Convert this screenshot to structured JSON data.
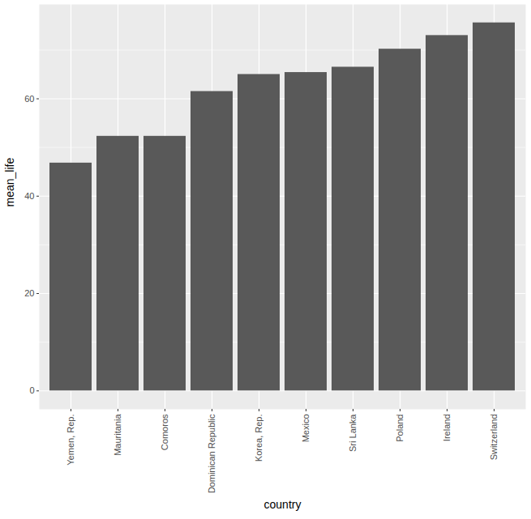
{
  "chart_data": {
    "type": "bar",
    "x_label": "country",
    "y_label": "mean_life",
    "categories": [
      "Yemen, Rep.",
      "Mauritania",
      "Comoros",
      "Dominican Republic",
      "Korea, Rep.",
      "Mexico",
      "Sri Lanka",
      "Poland",
      "Ireland",
      "Switzerland"
    ],
    "values": [
      46.8,
      52.3,
      52.3,
      61.5,
      65.0,
      65.4,
      66.5,
      70.2,
      73.0,
      75.6
    ],
    "color": "#595959",
    "ylim": [
      -3.78,
      79.38
    ],
    "yticks": [
      0,
      20,
      40,
      60
    ],
    "grid": true
  }
}
